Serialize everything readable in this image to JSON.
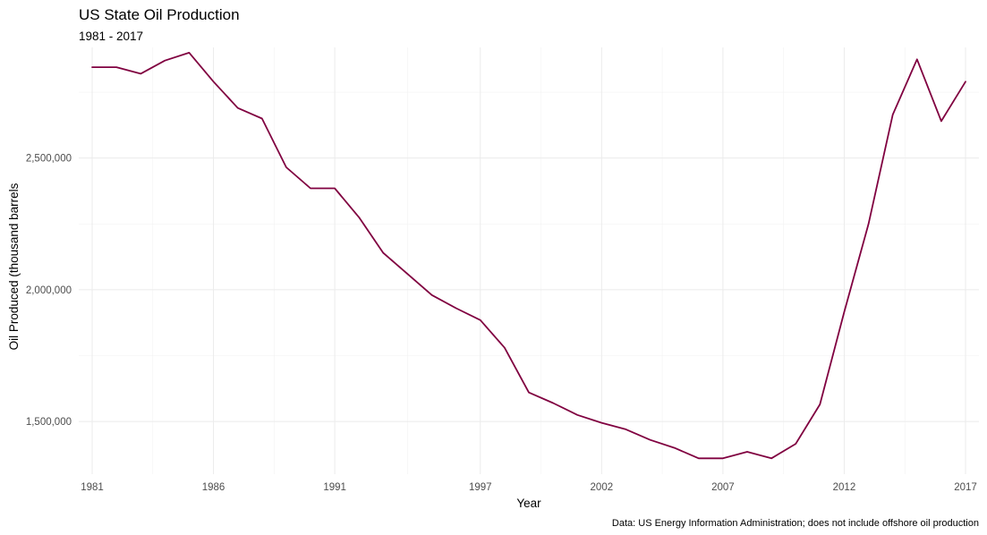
{
  "chart_data": {
    "type": "line",
    "title": "US State Oil Production",
    "subtitle": "1981 - 2017",
    "xlabel": "Year",
    "ylabel": "Oil Produced (thousand barrels",
    "caption": "Data: US Energy Information Administration; does not include offshore oil production",
    "xlim": [
      1981,
      2017
    ],
    "ylim": [
      1300000,
      2920000
    ],
    "x_ticks": [
      1981,
      1986,
      1991,
      1997,
      2002,
      2007,
      2012,
      2017
    ],
    "x_tick_labels": [
      "1981",
      "1986",
      "1991",
      "1997",
      "2002",
      "2007",
      "2012",
      "2017"
    ],
    "y_ticks": [
      1500000,
      2000000,
      2500000
    ],
    "y_tick_labels": [
      "1,500,000",
      "2,000,000",
      "2,500,000"
    ],
    "grid": true,
    "line_color": "#800040",
    "x": [
      1981,
      1982,
      1983,
      1984,
      1985,
      1986,
      1987,
      1988,
      1989,
      1990,
      1991,
      1992,
      1993,
      1994,
      1995,
      1996,
      1997,
      1998,
      1999,
      2000,
      2001,
      2002,
      2003,
      2004,
      2005,
      2006,
      2007,
      2008,
      2009,
      2010,
      2011,
      2012,
      2013,
      2014,
      2015,
      2016,
      2017
    ],
    "values": [
      2845000,
      2845000,
      2820000,
      2870000,
      2900000,
      2790000,
      2690000,
      2650000,
      2465000,
      2385000,
      2385000,
      2275000,
      2140000,
      2060000,
      1980000,
      1930000,
      1885000,
      1780000,
      1610000,
      1570000,
      1525000,
      1495000,
      1470000,
      1430000,
      1400000,
      1360000,
      1360000,
      1385000,
      1360000,
      1415000,
      1565000,
      1915000,
      2250000,
      2665000,
      2875000,
      2640000,
      2790000
    ]
  }
}
